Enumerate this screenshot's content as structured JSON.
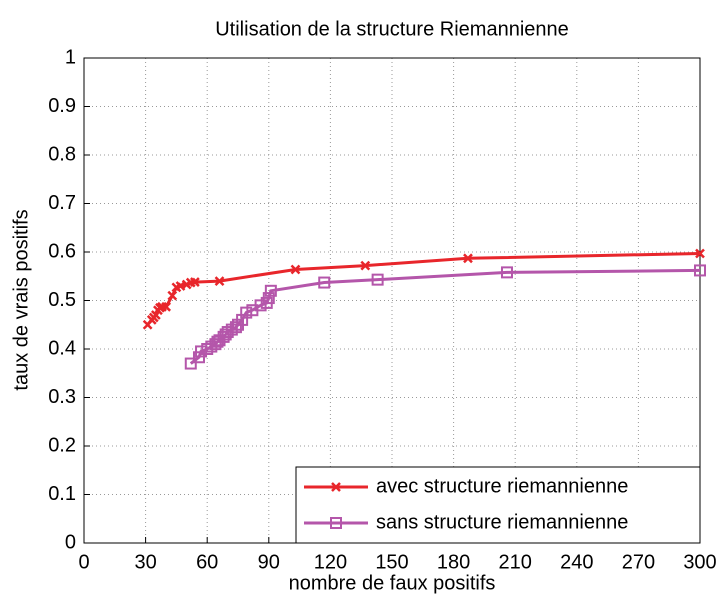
{
  "chart_data": {
    "type": "line",
    "title": "Utilisation de la structure Riemannienne",
    "xlabel": "nombre de faux positifs",
    "ylabel": "taux de vrais positifs",
    "xlim": [
      0,
      300
    ],
    "ylim": [
      0,
      1
    ],
    "xticks": [
      0,
      30,
      60,
      90,
      120,
      150,
      180,
      210,
      240,
      270,
      300
    ],
    "yticks": [
      0,
      0.1,
      0.2,
      0.3,
      0.4,
      0.5,
      0.6,
      0.7,
      0.8,
      0.9,
      1
    ],
    "grid": true,
    "legend": "lower right",
    "series": [
      {
        "name": "avec structure riemannienne",
        "color": "#e8262b",
        "marker": "x",
        "x": [
          31,
          33,
          34,
          35,
          36,
          37,
          38,
          40,
          43,
          45,
          47,
          50,
          52,
          54,
          66,
          103,
          137,
          187,
          300
        ],
        "values": [
          0.45,
          0.46,
          0.465,
          0.47,
          0.48,
          0.485,
          0.487,
          0.487,
          0.51,
          0.527,
          0.53,
          0.533,
          0.537,
          0.538,
          0.54,
          0.564,
          0.572,
          0.587,
          0.597
        ]
      },
      {
        "name": "sans structure riemannienne",
        "color": "#b456aa",
        "marker": "square",
        "x": [
          52,
          56,
          57,
          60,
          62,
          64,
          65,
          66,
          68,
          69,
          70,
          72,
          74,
          75,
          77,
          79,
          82,
          86,
          89,
          90,
          91,
          117,
          143,
          206,
          300
        ],
        "values": [
          0.37,
          0.383,
          0.395,
          0.4,
          0.405,
          0.41,
          0.415,
          0.418,
          0.425,
          0.43,
          0.435,
          0.44,
          0.445,
          0.45,
          0.46,
          0.475,
          0.48,
          0.49,
          0.495,
          0.505,
          0.52,
          0.537,
          0.543,
          0.558,
          0.562
        ]
      }
    ]
  }
}
